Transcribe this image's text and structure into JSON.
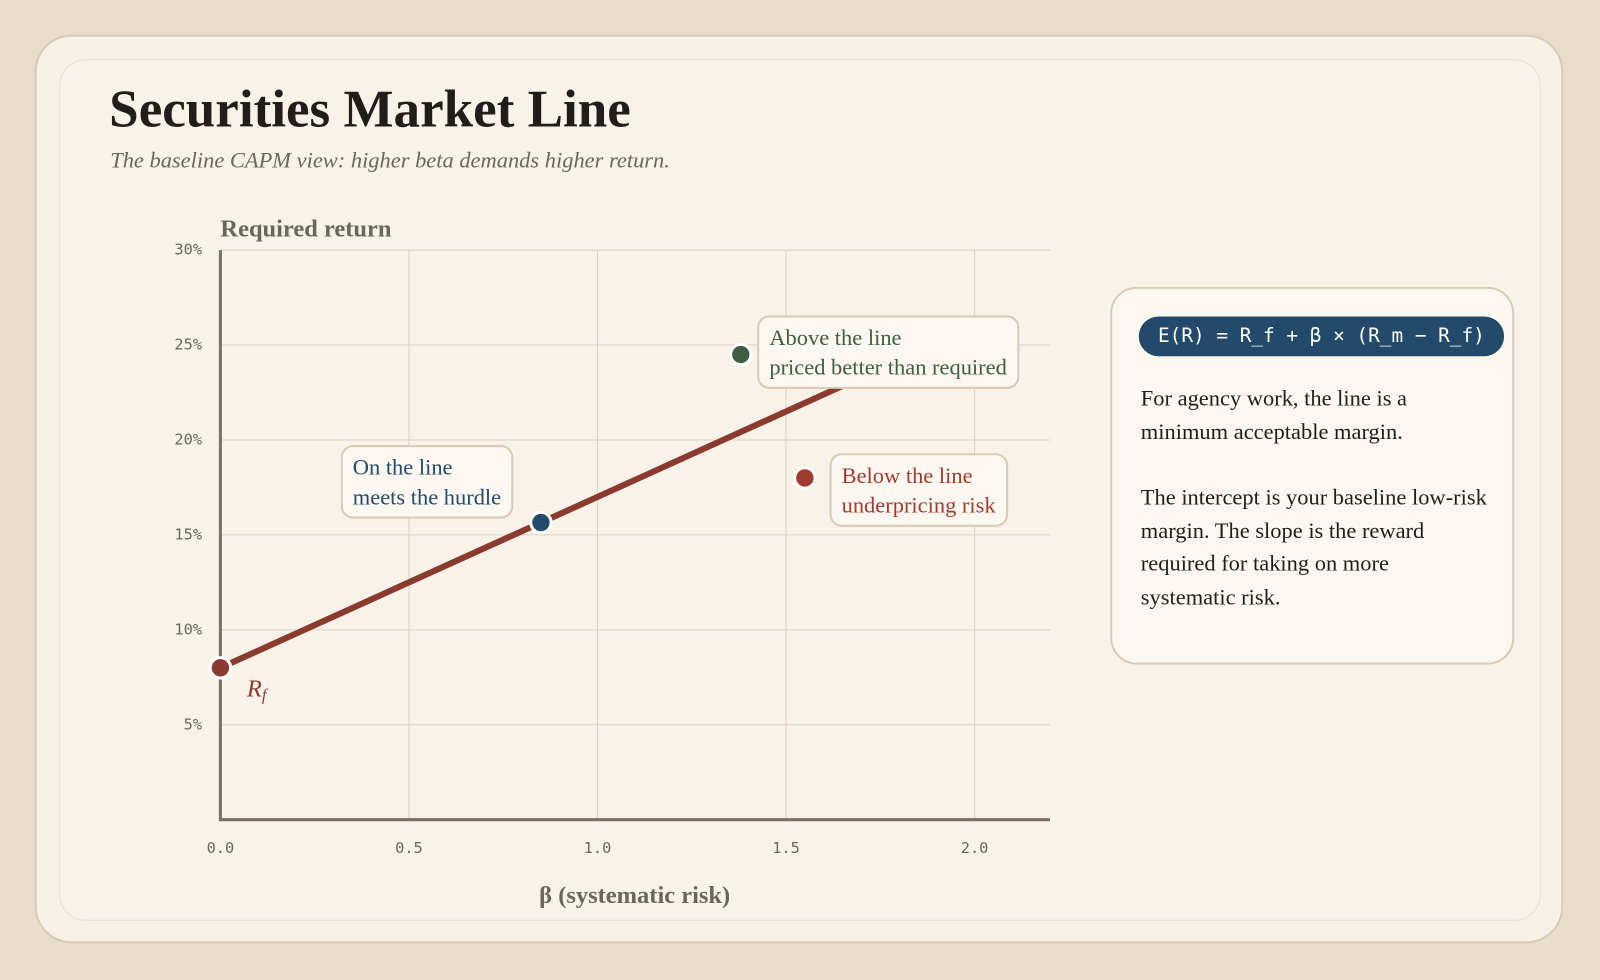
{
  "header": {
    "title": "Securities Market Line",
    "subtitle": "The baseline CAPM view: higher beta demands higher return."
  },
  "chart_data": {
    "type": "line",
    "y_label": "Required return",
    "x_label": "β (systematic risk)",
    "xlim": [
      0,
      2.2
    ],
    "ylim": [
      0,
      30
    ],
    "xticks": [
      {
        "value": 0,
        "label": "0.0"
      },
      {
        "value": 0.5,
        "label": "0.5"
      },
      {
        "value": 1,
        "label": "1.0"
      },
      {
        "value": 1.5,
        "label": "1.5"
      },
      {
        "value": 2,
        "label": "2.0"
      }
    ],
    "yticks": [
      {
        "value": 5,
        "label": "5%"
      },
      {
        "value": 10,
        "label": "10%"
      },
      {
        "value": 15,
        "label": "15%"
      },
      {
        "value": 20,
        "label": "20%"
      },
      {
        "value": 25,
        "label": "25%"
      },
      {
        "value": 30,
        "label": "30%"
      }
    ],
    "grid": true,
    "line": {
      "x": [
        0,
        2
      ],
      "values": [
        8,
        26
      ],
      "color": "#8b3a2f"
    },
    "points": [
      {
        "x": 0,
        "y": 8,
        "color": "#8b3a2f",
        "label": {
          "base": "R",
          "sub": "f"
        }
      },
      {
        "x": 0.85,
        "y": 15.65,
        "color": "#234a6b",
        "label": [
          "On the line",
          "meets the hurdle"
        ]
      },
      {
        "x": 1.38,
        "y": 24.5,
        "color": "#3f5e43",
        "label": [
          "Above the line",
          "priced better than required"
        ]
      },
      {
        "x": 1.55,
        "y": 18,
        "color": "#a13b30",
        "label": [
          "Below the line",
          "underpricing risk"
        ]
      }
    ]
  },
  "panel": {
    "formula": "E(R) = R_f + β × (R_m − R_f)",
    "paragraphs": [
      "For agency work, the line is a minimum acceptable margin.",
      "The intercept is your baseline low-risk margin. The slope is the reward required for taking on more systematic risk."
    ]
  }
}
